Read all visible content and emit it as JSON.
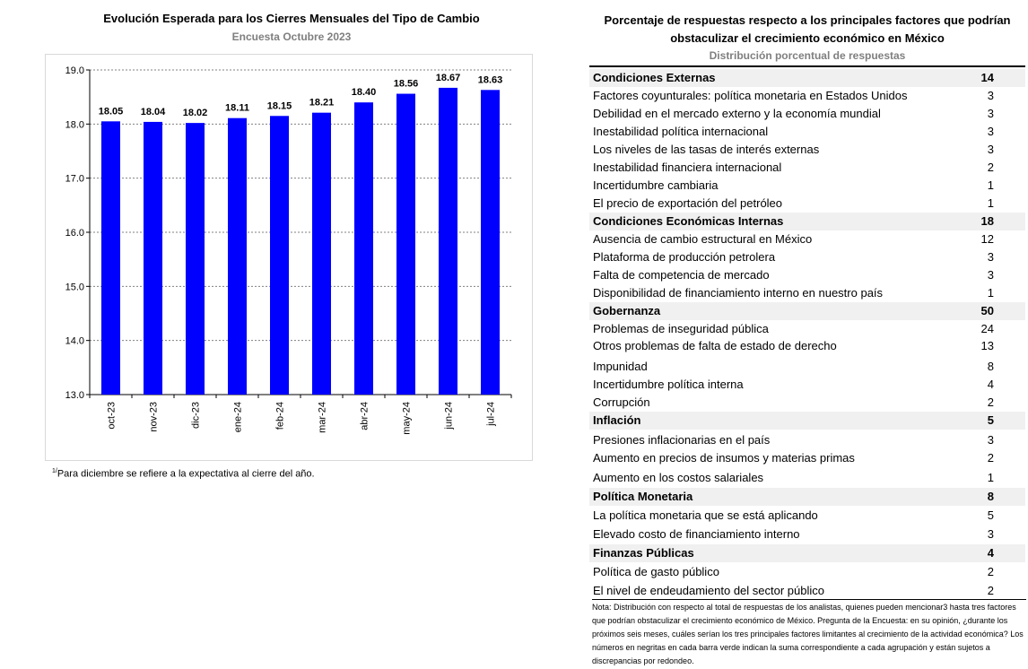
{
  "chart_data": {
    "type": "bar",
    "title": "Evolución Esperada para los Cierres Mensuales del Tipo de Cambio",
    "subtitle": "Encuesta Octubre 2023",
    "categories": [
      "oct-23",
      "nov-23",
      "dic-23",
      "ene-24",
      "feb-24",
      "mar-24",
      "abr-24",
      "may-24",
      "jun-24",
      "jul-24"
    ],
    "values": [
      18.05,
      18.04,
      18.02,
      18.11,
      18.15,
      18.21,
      18.4,
      18.56,
      18.67,
      18.63
    ],
    "value_labels": [
      "18.05",
      "18.04",
      "18.02",
      "18.11",
      "18.15",
      "18.21",
      "18.40",
      "18.56",
      "18.67",
      "18.63"
    ],
    "ylim": [
      13.0,
      19.0
    ],
    "yticks": [
      "13.0",
      "14.0",
      "15.0",
      "16.0",
      "17.0",
      "18.0",
      "19.0"
    ],
    "xlabel": "",
    "ylabel": "",
    "grid": true,
    "bar_color": "#0000ff"
  },
  "footnote": {
    "marker": "1/",
    "text": "Para diciembre se refiere a la expectativa al cierre del año."
  },
  "table": {
    "title": "Porcentaje de respuestas respecto a los principales factores que podrían obstaculizar el crecimiento económico en México",
    "subtitle": "Distribución porcentual de respuestas",
    "header_bg": "#f0f0f0",
    "rows": [
      {
        "label": "Condiciones Externas",
        "value": "14",
        "header": true
      },
      {
        "label": "Factores coyunturales: política monetaria en Estados Unidos",
        "value": "3"
      },
      {
        "label": "Debilidad en el mercado externo y la economía mundial",
        "value": "3"
      },
      {
        "label": "Inestabilidad política internacional",
        "value": "3"
      },
      {
        "label": "Los niveles de las tasas de interés externas",
        "value": "3"
      },
      {
        "label": "Inestabilidad financiera internacional",
        "value": "2"
      },
      {
        "label": "Incertidumbre cambiaria",
        "value": "1"
      },
      {
        "label": "El precio de exportación del petróleo",
        "value": "1"
      },
      {
        "label": "Condiciones Económicas Internas",
        "value": "18",
        "header": true
      },
      {
        "label": "Ausencia de cambio estructural en México",
        "value": "12"
      },
      {
        "label": "Plataforma de producción petrolera",
        "value": "3"
      },
      {
        "label": "Falta de competencia de mercado",
        "value": "3"
      },
      {
        "label": "Disponibilidad de financiamiento interno en nuestro país",
        "value": "1"
      },
      {
        "label": "Gobernanza",
        "value": "50",
        "header": true
      },
      {
        "label": "Problemas de inseguridad pública",
        "value": "24"
      },
      {
        "label": "Otros problemas de falta de estado de derecho",
        "value": "13"
      },
      {
        "label": "Impunidad",
        "value": "8"
      },
      {
        "label": "Incertidumbre política interna",
        "value": "4"
      },
      {
        "label": "Corrupción",
        "value": "2"
      },
      {
        "label": "Inflación",
        "value": "5",
        "header": true
      },
      {
        "label": "Presiones inflacionarias en el país",
        "value": "3"
      },
      {
        "label": "Aumento en precios de insumos y materias primas",
        "value": "2"
      },
      {
        "label": "Aumento en los costos salariales",
        "value": "1"
      },
      {
        "label": "Política Monetaria",
        "value": "8",
        "header": true
      },
      {
        "label": "La política monetaria que se está aplicando",
        "value": "5"
      },
      {
        "label": "Elevado costo de financiamiento interno",
        "value": "3"
      },
      {
        "label": "Finanzas Públicas",
        "value": "4",
        "header": true
      },
      {
        "label": "Política de gasto público",
        "value": "2"
      },
      {
        "label": "El nivel de endeudamiento del sector público",
        "value": "2"
      }
    ],
    "note": "Nota: Distribución con respecto al total de respuestas de los analistas, quienes pueden mencionar3 hasta tres factores que podrían obstaculizar el crecimiento económico de México. Pregunta de la Encuesta: en su opinión, ¿durante los próximos seis meses, cuáles serían los tres principales factores limitantes al crecimiento de la actividad económica? Los números en negritas en cada barra verde indican la suma correspondiente a cada agrupación y están sujetos a discrepancias por redondeo."
  }
}
